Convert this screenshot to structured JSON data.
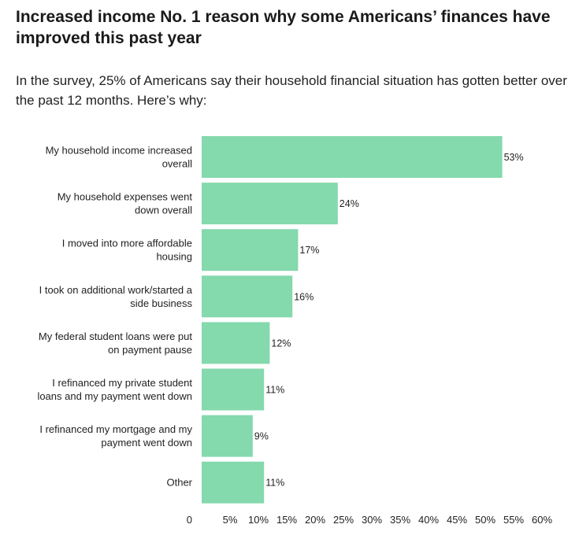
{
  "title": "Increased income No. 1 reason why some Americans’ finances have improved this past year",
  "subtitle": "In the survey, 25% of Americans say their household financial situation has gotten better over the past 12 months. Here’s why:",
  "colors": {
    "bar": "#84d9ad",
    "text": "#222222"
  },
  "chart_data": {
    "type": "bar",
    "orientation": "horizontal",
    "categories": [
      [
        "My household income increased",
        "overall"
      ],
      [
        "My household expenses went",
        "down overall"
      ],
      [
        "I moved into more affordable",
        "housing"
      ],
      [
        "I took on additional work/started a",
        "side business"
      ],
      [
        "My federal student loans were put",
        "on payment pause"
      ],
      [
        "I refinanced my private student",
        "loans and my payment went down"
      ],
      [
        "I refinanced my mortgage and my",
        "payment went down"
      ],
      [
        "Other"
      ]
    ],
    "values": [
      53,
      24,
      17,
      16,
      12,
      11,
      9,
      11
    ],
    "value_labels": [
      "53%",
      "24%",
      "17%",
      "16%",
      "12%",
      "11%",
      "9%",
      "11%"
    ],
    "xlim": [
      0,
      60
    ],
    "xticks": [
      0,
      5,
      10,
      15,
      20,
      25,
      30,
      35,
      40,
      45,
      50,
      55,
      60
    ],
    "xtick_labels": [
      "0",
      "5%",
      "10%",
      "15%",
      "20%",
      "25%",
      "30%",
      "35%",
      "40%",
      "45%",
      "50%",
      "55%",
      "60%"
    ],
    "grid": false,
    "legend": "none"
  }
}
